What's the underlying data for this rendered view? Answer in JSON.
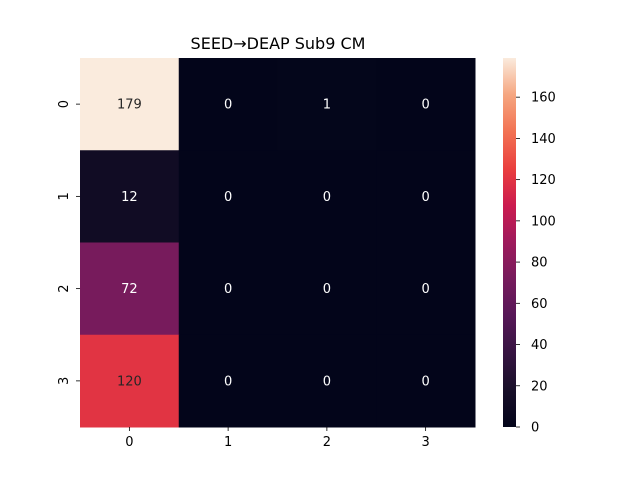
{
  "chart_data": {
    "type": "heatmap",
    "title": "SEED→DEAP Sub9 CM",
    "xlabel": "",
    "ylabel": "",
    "row_labels": [
      "0",
      "1",
      "2",
      "3"
    ],
    "col_labels": [
      "0",
      "1",
      "2",
      "3"
    ],
    "values": [
      [
        179,
        0,
        1,
        0
      ],
      [
        12,
        0,
        0,
        0
      ],
      [
        72,
        0,
        0,
        0
      ],
      [
        120,
        0,
        0,
        0
      ]
    ],
    "colorbar": {
      "range": [
        0,
        179
      ],
      "ticks": [
        0,
        20,
        40,
        60,
        80,
        100,
        120,
        140,
        160
      ],
      "colormap": "rocket"
    },
    "text_colors": {
      "light": "#ffffff",
      "dark": "#262626"
    }
  }
}
